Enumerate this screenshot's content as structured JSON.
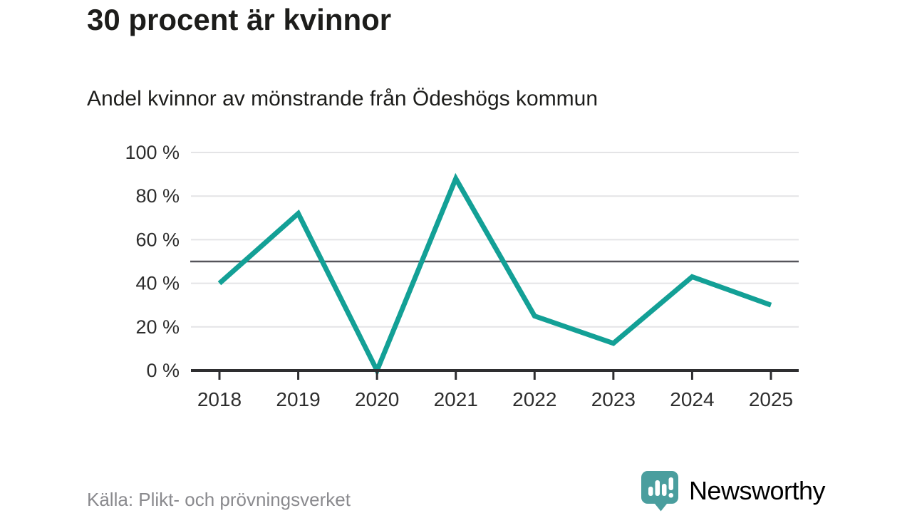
{
  "header": {
    "title": "30 procent är kvinnor",
    "subtitle": "Andel kvinnor av mönstrande från Ödeshögs kommun"
  },
  "chart_data": {
    "type": "line",
    "title": "30 procent är kvinnor",
    "subtitle": "Andel kvinnor av mönstrande från Ödeshögs kommun",
    "categories": [
      "2018",
      "2019",
      "2020",
      "2021",
      "2022",
      "2023",
      "2024",
      "2025"
    ],
    "values": [
      40,
      72,
      0,
      88,
      25,
      12.5,
      43,
      30
    ],
    "unit": "%",
    "ylim": [
      0,
      100
    ],
    "yticks": [
      {
        "value": 0,
        "label": "0 %"
      },
      {
        "value": 20,
        "label": "20 %"
      },
      {
        "value": 40,
        "label": "40 %"
      },
      {
        "value": 60,
        "label": "60 %"
      },
      {
        "value": 80,
        "label": "80 %"
      },
      {
        "value": 100,
        "label": "100 %"
      }
    ],
    "reference_line": {
      "value": 50
    },
    "grid": true,
    "legend": "none",
    "colors": {
      "line": "#13a096",
      "grid": "#e4e4e6",
      "reference": "#55545a",
      "axis": "#2e2e30",
      "tick_text": "#2e2e2e"
    }
  },
  "footer": {
    "source": "Källa: Plikt- och prövningsverket",
    "brand": "Newsworthy",
    "brand_color": "#2d9c9c",
    "logo_color": "#4a9e9e",
    "logo_glyph_color": "#ffffff"
  }
}
